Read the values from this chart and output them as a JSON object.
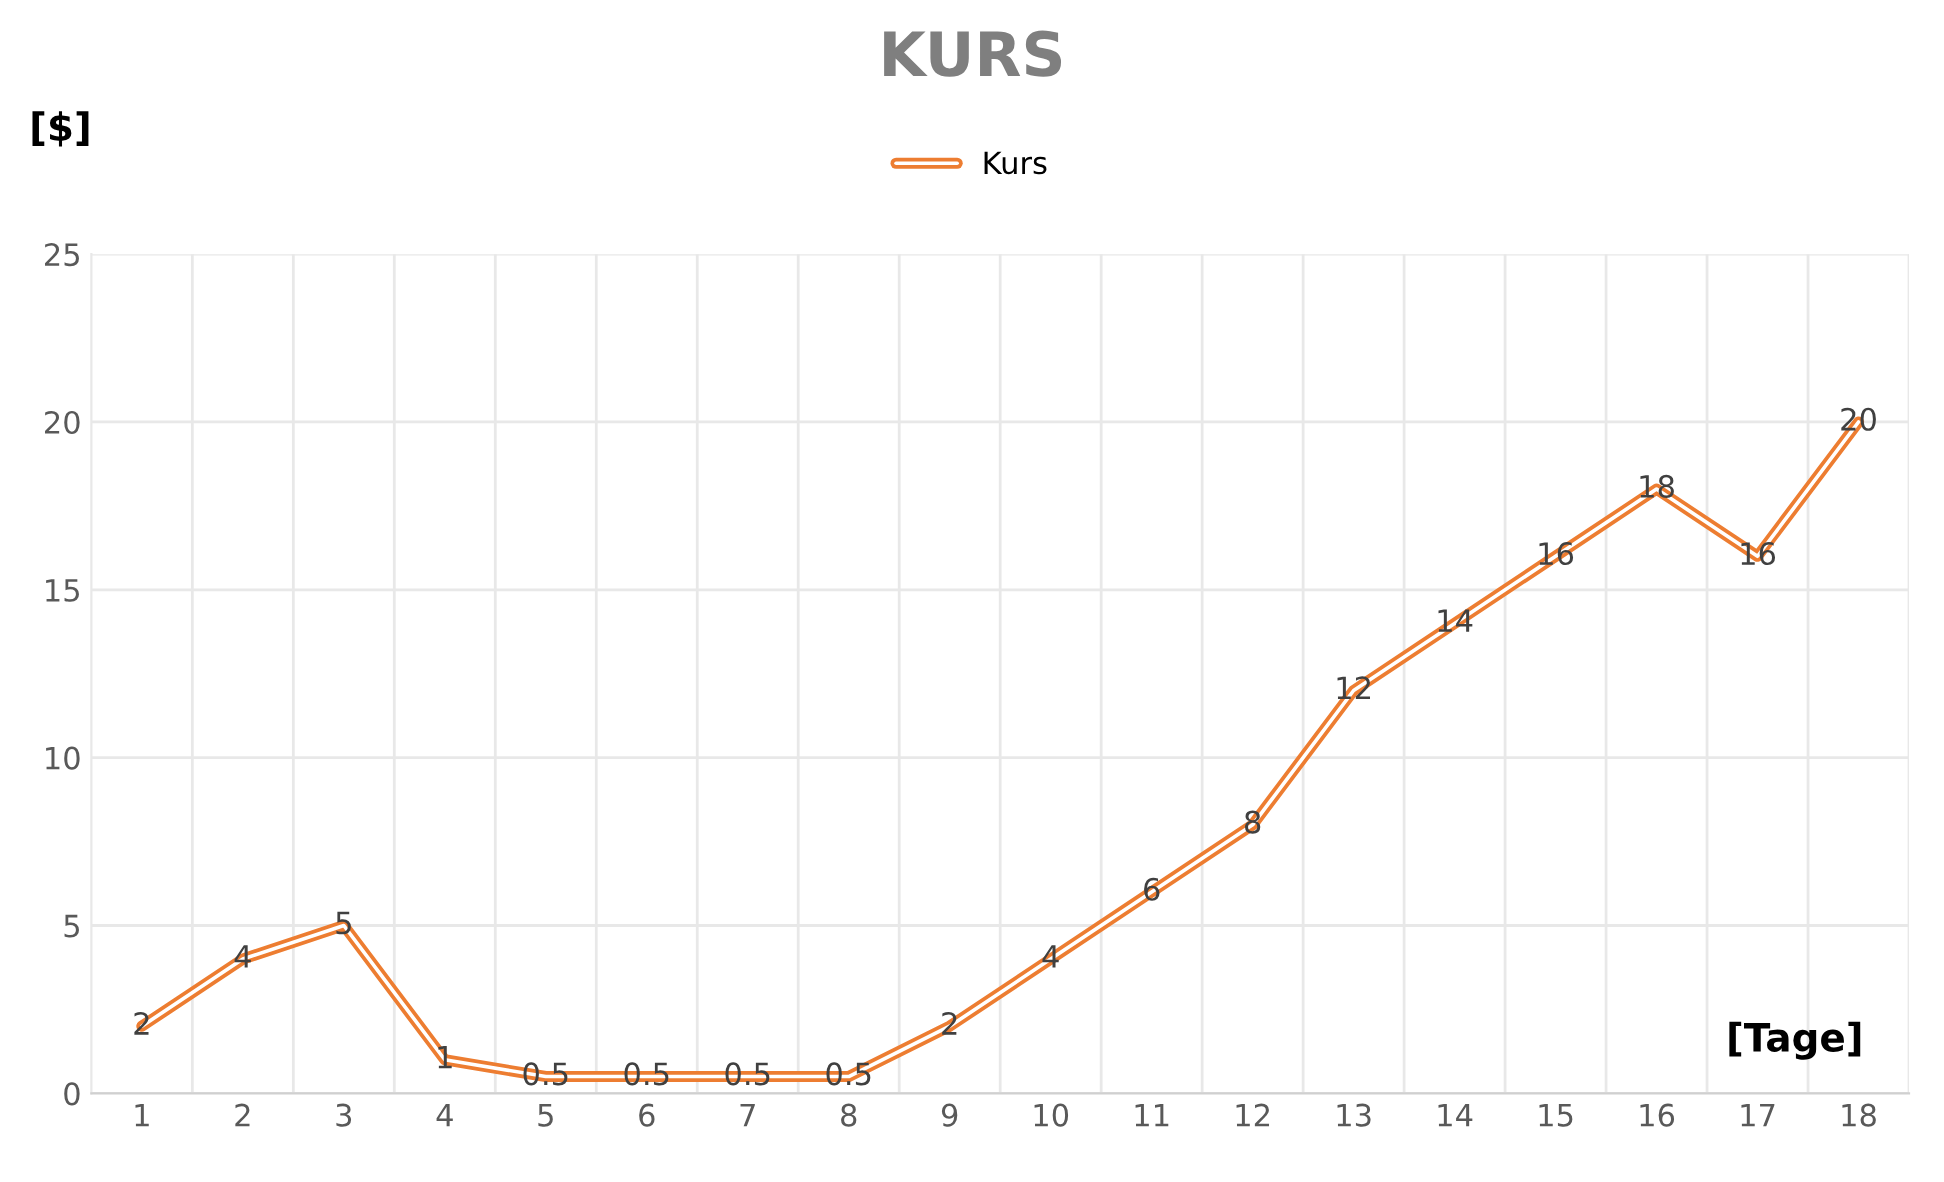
{
  "chart_data": {
    "type": "line",
    "title": "KURS",
    "ylabel": "[$]",
    "xlabel": "[Tage]",
    "categories": [
      "1",
      "2",
      "3",
      "4",
      "5",
      "6",
      "7",
      "8",
      "9",
      "10",
      "11",
      "12",
      "13",
      "14",
      "15",
      "16",
      "17",
      "18"
    ],
    "series": [
      {
        "name": "Kurs",
        "color": "#ed7d31",
        "values": [
          2,
          4,
          5,
          1,
          0.5,
          0.5,
          0.5,
          0.5,
          2,
          4,
          6,
          8,
          12,
          14,
          16,
          18,
          16,
          20
        ]
      }
    ],
    "ylim": [
      0,
      25
    ],
    "yticks": [
      0,
      5,
      10,
      15,
      20,
      25
    ],
    "grid": true,
    "legend": "top",
    "data_labels": true,
    "marker": "none",
    "line_style": "solid"
  }
}
